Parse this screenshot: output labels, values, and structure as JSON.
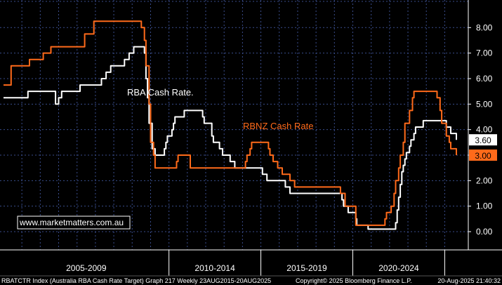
{
  "chart_data": {
    "type": "line",
    "title": "",
    "xlabel": "",
    "ylabel": "",
    "ylim": [
      -0.7,
      9.0
    ],
    "yticks": [
      "8.00",
      "7.00",
      "6.00",
      "5.00",
      "4.00",
      "3.00",
      "2.00",
      "1.00",
      "0.00"
    ],
    "x_periods": [
      "2005-2009",
      "2010-2014",
      "2015-2019",
      "2020-2024"
    ],
    "grid": true,
    "series": [
      {
        "name": "RBA Cash Rate.",
        "color": "#ffffff",
        "last_value": "3.60",
        "points": [
          [
            "2001-01-01",
            5.25
          ],
          [
            "2002-05-01",
            5.5
          ],
          [
            "2003-11-01",
            5.0
          ],
          [
            "2004-01-01",
            5.25
          ],
          [
            "2004-03-01",
            5.5
          ],
          [
            "2005-03-01",
            5.75
          ],
          [
            "2006-05-01",
            6.0
          ],
          [
            "2006-08-01",
            6.25
          ],
          [
            "2006-11-01",
            6.5
          ],
          [
            "2007-08-01",
            6.75
          ],
          [
            "2007-11-01",
            7.0
          ],
          [
            "2008-02-01",
            7.25
          ],
          [
            "2008-03-01",
            7.25
          ],
          [
            "2008-09-01",
            7.0
          ],
          [
            "2008-10-01",
            6.0
          ],
          [
            "2008-11-01",
            5.25
          ],
          [
            "2008-12-01",
            4.25
          ],
          [
            "2009-02-01",
            3.25
          ],
          [
            "2009-04-01",
            3.0
          ],
          [
            "2009-10-01",
            3.25
          ],
          [
            "2009-11-01",
            3.5
          ],
          [
            "2009-12-01",
            3.75
          ],
          [
            "2010-03-01",
            4.0
          ],
          [
            "2010-04-01",
            4.25
          ],
          [
            "2010-05-01",
            4.5
          ],
          [
            "2010-11-01",
            4.75
          ],
          [
            "2011-11-01",
            4.5
          ],
          [
            "2011-12-01",
            4.25
          ],
          [
            "2012-05-01",
            3.75
          ],
          [
            "2012-06-01",
            3.5
          ],
          [
            "2012-10-01",
            3.25
          ],
          [
            "2012-12-01",
            3.0
          ],
          [
            "2013-05-01",
            2.75
          ],
          [
            "2013-08-01",
            2.5
          ],
          [
            "2015-02-01",
            2.25
          ],
          [
            "2015-05-01",
            2.0
          ],
          [
            "2016-05-01",
            1.75
          ],
          [
            "2016-08-01",
            1.5
          ],
          [
            "2019-06-01",
            1.25
          ],
          [
            "2019-07-01",
            1.0
          ],
          [
            "2019-10-01",
            0.75
          ],
          [
            "2020-03-01",
            0.5
          ],
          [
            "2020-03-20",
            0.25
          ],
          [
            "2020-11-01",
            0.1
          ],
          [
            "2022-05-01",
            0.35
          ],
          [
            "2022-06-01",
            0.85
          ],
          [
            "2022-07-01",
            1.35
          ],
          [
            "2022-08-01",
            1.85
          ],
          [
            "2022-09-01",
            2.35
          ],
          [
            "2022-10-01",
            2.6
          ],
          [
            "2022-11-01",
            2.85
          ],
          [
            "2022-12-01",
            3.1
          ],
          [
            "2023-02-01",
            3.35
          ],
          [
            "2023-03-01",
            3.6
          ],
          [
            "2023-05-01",
            3.85
          ],
          [
            "2023-06-01",
            4.1
          ],
          [
            "2023-11-01",
            4.35
          ],
          [
            "2025-02-01",
            4.1
          ],
          [
            "2025-05-01",
            3.85
          ],
          [
            "2025-08-20",
            3.6
          ]
        ]
      },
      {
        "name": "RBNZ Cash Rate",
        "color": "#ff6a1a",
        "last_value": "3.00",
        "points": [
          [
            "2001-01-01",
            5.75
          ],
          [
            "2001-06-01",
            6.5
          ],
          [
            "2002-06-01",
            6.75
          ],
          [
            "2003-03-01",
            7.0
          ],
          [
            "2003-08-01",
            7.25
          ],
          [
            "2004-01-01",
            7.25
          ],
          [
            "2004-06-01",
            7.25
          ],
          [
            "2005-03-01",
            7.25
          ],
          [
            "2005-06-01",
            7.75
          ],
          [
            "2005-12-01",
            8.25
          ],
          [
            "2007-05-01",
            8.25
          ],
          [
            "2007-09-01",
            8.25
          ],
          [
            "2008-05-01",
            8.25
          ],
          [
            "2008-07-01",
            8.0
          ],
          [
            "2008-09-01",
            7.5
          ],
          [
            "2008-10-01",
            6.5
          ],
          [
            "2008-12-01",
            5.0
          ],
          [
            "2009-01-01",
            3.5
          ],
          [
            "2009-03-01",
            3.0
          ],
          [
            "2009-04-01",
            2.5
          ],
          [
            "2010-06-01",
            2.75
          ],
          [
            "2010-07-01",
            3.0
          ],
          [
            "2011-03-01",
            2.5
          ],
          [
            "2014-03-01",
            2.75
          ],
          [
            "2014-04-01",
            3.0
          ],
          [
            "2014-06-01",
            3.25
          ],
          [
            "2014-07-01",
            3.5
          ],
          [
            "2015-06-01",
            3.25
          ],
          [
            "2015-07-01",
            3.0
          ],
          [
            "2015-09-01",
            2.75
          ],
          [
            "2015-12-01",
            2.5
          ],
          [
            "2016-03-01",
            2.25
          ],
          [
            "2016-08-01",
            2.0
          ],
          [
            "2016-11-01",
            1.75
          ],
          [
            "2019-05-01",
            1.5
          ],
          [
            "2019-08-01",
            1.0
          ],
          [
            "2020-03-01",
            0.25
          ],
          [
            "2021-10-01",
            0.5
          ],
          [
            "2021-11-01",
            0.75
          ],
          [
            "2022-02-01",
            1.0
          ],
          [
            "2022-04-01",
            1.5
          ],
          [
            "2022-05-01",
            2.0
          ],
          [
            "2022-07-01",
            2.5
          ],
          [
            "2022-08-01",
            3.0
          ],
          [
            "2022-10-01",
            3.5
          ],
          [
            "2022-11-01",
            4.25
          ],
          [
            "2023-02-01",
            4.75
          ],
          [
            "2023-04-01",
            5.25
          ],
          [
            "2023-05-01",
            5.5
          ],
          [
            "2024-08-01",
            5.25
          ],
          [
            "2024-10-01",
            4.75
          ],
          [
            "2024-11-01",
            4.25
          ],
          [
            "2025-02-01",
            3.75
          ],
          [
            "2025-04-01",
            3.5
          ],
          [
            "2025-05-01",
            3.25
          ],
          [
            "2025-08-20",
            3.0
          ]
        ]
      }
    ]
  },
  "watermark": "www.marketmatters.com.au",
  "footer": {
    "left": "RBATCTR Index (Australia RBA Cash Rate Target) Graph 217  Weekly 23AUG2015-20AUG2025",
    "middle": "Copyright© 2025 Bloomberg Finance L.P.",
    "right": "20-Aug-2025 21:40:32"
  },
  "colors": {
    "background": "#000000",
    "grid": "#3a4d8c",
    "rba": "#ffffff",
    "rbnz": "#ff6a1a"
  }
}
